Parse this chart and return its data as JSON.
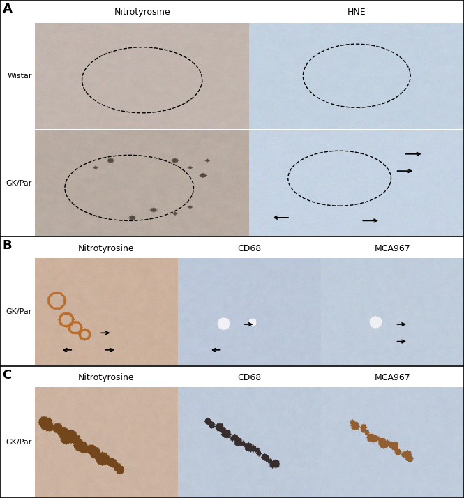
{
  "panel_labels": [
    "A",
    "B",
    "C"
  ],
  "panel_A": {
    "col_headers": [
      "Nitrotyrosine",
      "HNE"
    ],
    "row_labels": [
      "Wistar",
      "GK/Par"
    ]
  },
  "panel_B": {
    "col_headers": [
      "Nitrotyrosine",
      "CD68",
      "MCA967"
    ],
    "row_labels": [
      "GK/Par"
    ]
  },
  "panel_C": {
    "col_headers": [
      "Nitrotyrosine",
      "CD68",
      "MCA967"
    ],
    "row_labels": [
      "GK/Par"
    ]
  },
  "bg_color": "#ffffff",
  "text_color": "#000000",
  "header_fontsize": 9,
  "row_label_fontsize": 8,
  "panel_label_fontsize": 13,
  "fig_width": 6.65,
  "fig_height": 7.14,
  "colors": {
    "nitrotyrosine_wistar_bg": [
      195,
      182,
      175
    ],
    "hne_wistar_bg": [
      195,
      210,
      225
    ],
    "nitrotyrosine_gkpar_A_bg": [
      185,
      172,
      162
    ],
    "hne_gkpar_A_bg": [
      198,
      212,
      228
    ],
    "nitrotyrosine_B_bg": [
      205,
      178,
      158
    ],
    "cd68_B_bg": [
      188,
      200,
      218
    ],
    "mca967_B_bg": [
      192,
      205,
      220
    ],
    "nitrotyrosine_C_bg": [
      205,
      180,
      162
    ],
    "cd68_C_bg": [
      190,
      202,
      218
    ],
    "mca967_C_bg": [
      192,
      204,
      220
    ]
  }
}
